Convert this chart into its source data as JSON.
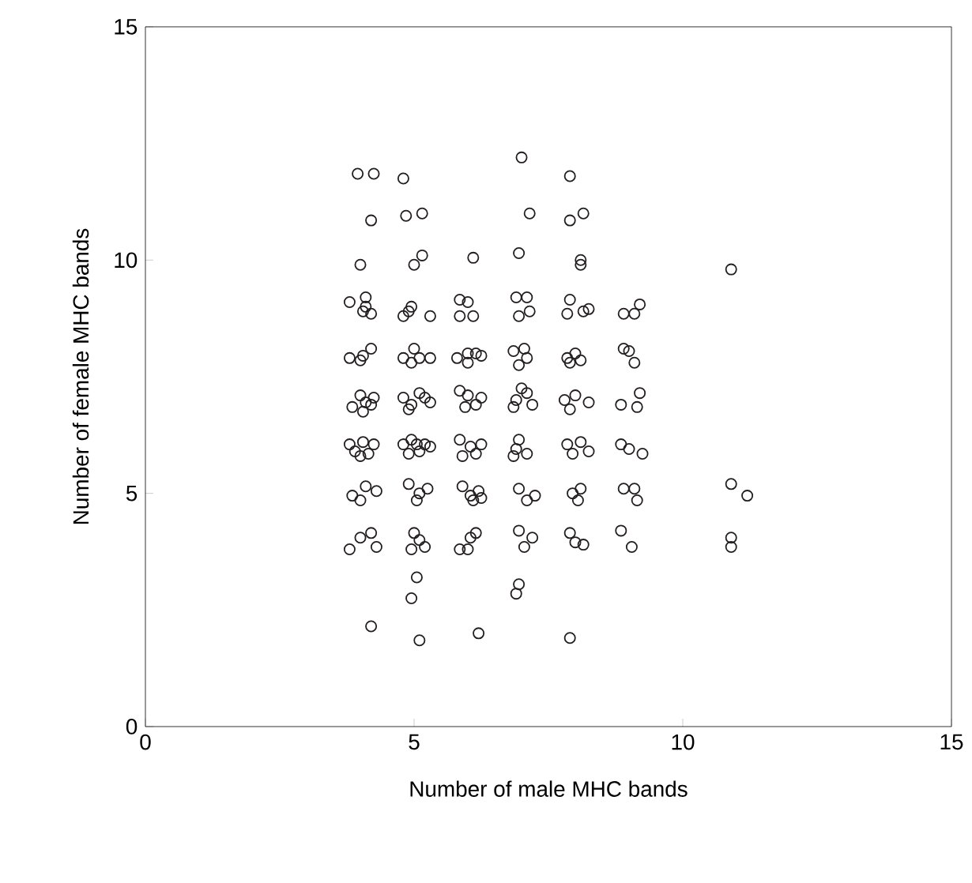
{
  "chart_data": {
    "type": "scatter",
    "xlabel": "Number of male MHC bands",
    "ylabel": "Number of female MHC bands",
    "xlim": [
      0,
      15
    ],
    "ylim": [
      0,
      15
    ],
    "xticks": [
      0,
      5,
      10,
      15
    ],
    "yticks": [
      0,
      5,
      10,
      15
    ],
    "marker": "circle",
    "color": "#231f20",
    "x": [
      3.95,
      4.25,
      4.8,
      7.0,
      7.9,
      4.2,
      4.85,
      5.15,
      7.15,
      7.9,
      8.15,
      4.0,
      5.0,
      5.15,
      6.1,
      6.95,
      8.1,
      8.1,
      10.9,
      3.8,
      4.1,
      4.05,
      4.1,
      4.2,
      4.8,
      4.95,
      4.9,
      5.3,
      5.85,
      6.0,
      5.85,
      6.1,
      6.9,
      7.1,
      6.95,
      7.15,
      7.9,
      7.85,
      8.15,
      8.25,
      8.9,
      9.1,
      9.2,
      3.8,
      4.0,
      4.2,
      4.05,
      4.8,
      5.0,
      5.1,
      4.95,
      5.3,
      5.8,
      6.0,
      6.15,
      6.0,
      6.25,
      6.85,
      7.05,
      7.1,
      6.95,
      7.85,
      8.0,
      8.1,
      7.9,
      8.9,
      9.0,
      9.1,
      3.85,
      4.0,
      4.1,
      4.25,
      4.05,
      4.2,
      4.8,
      4.95,
      5.1,
      5.2,
      5.3,
      4.9,
      5.85,
      6.0,
      6.15,
      5.95,
      6.25,
      6.9,
      7.1,
      7.2,
      6.85,
      7.0,
      7.8,
      8.0,
      7.9,
      8.25,
      8.85,
      9.2,
      9.15,
      3.8,
      3.9,
      4.05,
      4.0,
      4.25,
      4.15,
      4.8,
      4.95,
      5.1,
      5.2,
      5.3,
      4.9,
      5.05,
      5.85,
      6.05,
      6.15,
      5.9,
      6.25,
      6.9,
      6.95,
      7.1,
      6.85,
      7.85,
      8.1,
      8.25,
      7.95,
      8.85,
      9.0,
      9.25,
      3.85,
      4.1,
      4.0,
      4.3,
      4.9,
      5.1,
      5.05,
      5.25,
      5.9,
      6.05,
      6.2,
      6.1,
      6.25,
      6.95,
      7.1,
      7.25,
      7.95,
      8.1,
      8.05,
      8.9,
      9.1,
      9.15,
      10.9,
      11.2,
      3.8,
      4.0,
      4.2,
      4.3,
      4.95,
      5.1,
      5.0,
      5.2,
      5.85,
      6.05,
      6.15,
      6.0,
      6.95,
      7.05,
      7.2,
      7.9,
      8.0,
      8.15,
      8.85,
      9.05,
      10.9,
      10.9,
      5.05,
      4.95,
      6.95,
      6.9,
      4.2,
      5.1,
      6.2,
      7.9
    ],
    "values": [
      11.85,
      11.85,
      11.75,
      12.2,
      11.8,
      10.85,
      10.95,
      11.0,
      11.0,
      10.85,
      11.0,
      9.9,
      9.9,
      10.1,
      10.05,
      10.15,
      9.9,
      10.0,
      9.8,
      9.1,
      9.2,
      8.9,
      9.0,
      8.85,
      8.8,
      9.0,
      8.9,
      8.8,
      9.15,
      9.1,
      8.8,
      8.8,
      9.2,
      9.2,
      8.8,
      8.9,
      9.15,
      8.85,
      8.9,
      8.95,
      8.85,
      8.85,
      9.05,
      7.9,
      7.85,
      8.1,
      7.95,
      7.9,
      8.1,
      7.9,
      7.8,
      7.9,
      7.9,
      8.0,
      8.0,
      7.8,
      7.95,
      8.05,
      8.1,
      7.9,
      7.75,
      7.9,
      8.0,
      7.85,
      7.8,
      8.1,
      8.05,
      7.8,
      6.85,
      7.1,
      6.95,
      7.05,
      6.75,
      6.9,
      7.05,
      6.9,
      7.15,
      7.05,
      6.95,
      6.8,
      7.2,
      7.1,
      6.9,
      6.85,
      7.05,
      7.0,
      7.15,
      6.9,
      6.85,
      7.25,
      7.0,
      7.1,
      6.8,
      6.95,
      6.9,
      7.15,
      6.85,
      6.05,
      5.9,
      6.1,
      5.8,
      6.05,
      5.85,
      6.05,
      6.15,
      5.9,
      6.05,
      6.0,
      5.85,
      6.05,
      6.15,
      6.0,
      5.85,
      5.8,
      6.05,
      5.95,
      6.15,
      5.85,
      5.8,
      6.05,
      6.1,
      5.9,
      5.85,
      6.05,
      5.95,
      5.85,
      4.95,
      5.15,
      4.85,
      5.05,
      5.2,
      5.0,
      4.85,
      5.1,
      5.15,
      4.95,
      5.05,
      4.85,
      4.9,
      5.1,
      4.85,
      4.95,
      5.0,
      5.1,
      4.85,
      5.1,
      5.1,
      4.85,
      5.2,
      4.95,
      3.8,
      4.05,
      4.15,
      3.85,
      3.8,
      4.0,
      4.15,
      3.85,
      3.8,
      4.05,
      4.15,
      3.8,
      4.2,
      3.85,
      4.05,
      4.15,
      3.95,
      3.9,
      4.2,
      3.85,
      4.05,
      3.85,
      3.2,
      2.75,
      3.05,
      2.85,
      2.15,
      1.85,
      2.0,
      1.9
    ]
  }
}
